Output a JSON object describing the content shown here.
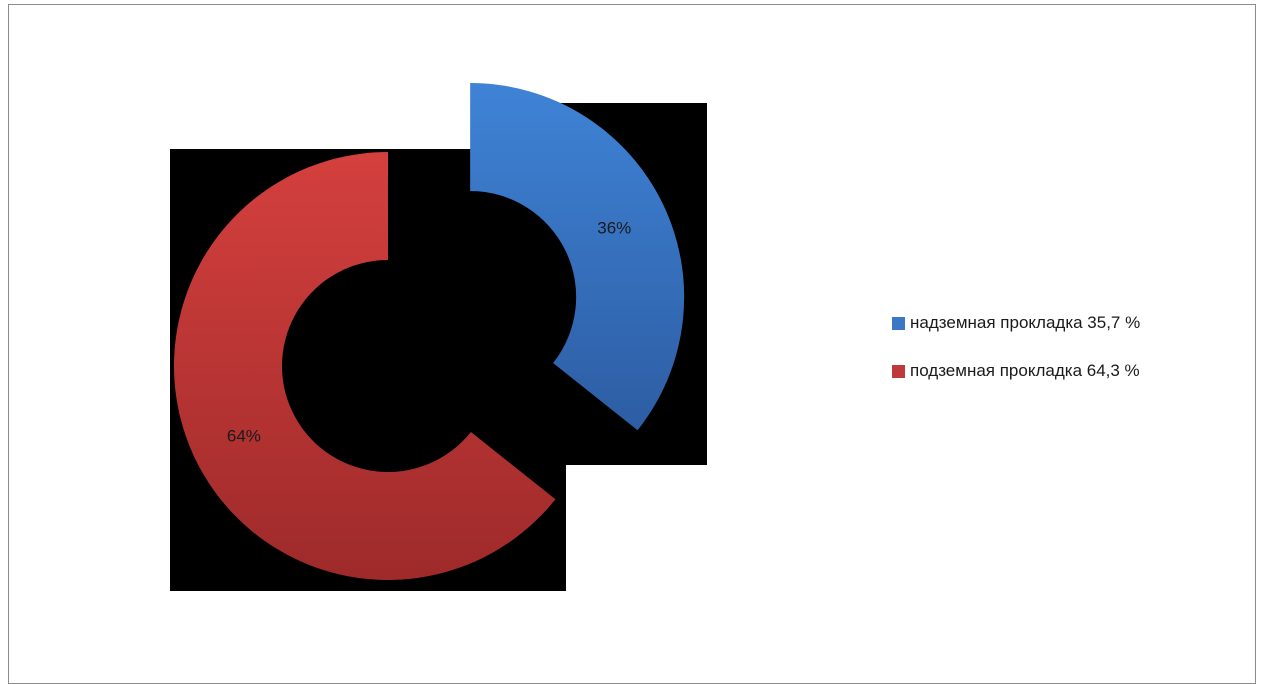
{
  "chart_data": {
    "type": "pie",
    "variant": "doughnut-exploded",
    "title": "",
    "categories": [
      "надземная прокладка 35,7 %",
      "подземная прокладка 64,3 %"
    ],
    "values": [
      35.7,
      64.3
    ],
    "data_labels": [
      "36%",
      "64%"
    ],
    "colors": [
      "#3a77c6",
      "#c0393a"
    ],
    "background": "#000000",
    "legend_position": "right"
  }
}
